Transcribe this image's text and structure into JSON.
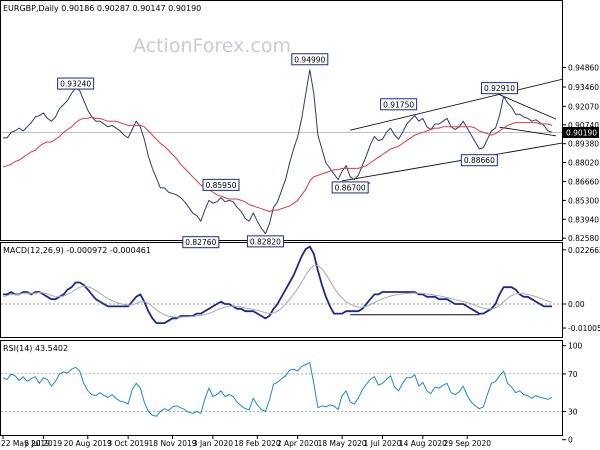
{
  "chart_data": [
    {
      "type": "line",
      "panel": "price",
      "title": "EURGBP,Daily  0.90186 0.90287 0.90147 0.90190",
      "watermark": "ActionForex.com",
      "ylim": [
        0.8245,
        0.9965
      ],
      "y_ticks": [
        "0.94860",
        "0.93460",
        "0.92070",
        "0.90740",
        "0.89380",
        "0.88020",
        "0.86660",
        "0.85300",
        "0.83940",
        "0.82580"
      ],
      "y_tick_values": [
        0.9486,
        0.9346,
        0.9207,
        0.9074,
        0.8938,
        0.8802,
        0.8666,
        0.853,
        0.8394,
        0.8258
      ],
      "last_price_label": "0.90190",
      "last_price": 0.9019,
      "series": [
        {
          "name": "",
          "color": "#2e3b6e",
          "values": [
            0.898,
            0.898,
            0.902,
            0.903,
            0.905,
            0.903,
            0.906,
            0.909,
            0.913,
            0.914,
            0.916,
            0.912,
            0.91,
            0.913,
            0.919,
            0.922,
            0.925,
            0.93,
            0.934,
            0.932,
            0.925,
            0.918,
            0.913,
            0.91,
            0.91,
            0.908,
            0.906,
            0.907,
            0.905,
            0.903,
            0.9,
            0.898,
            0.904,
            0.91,
            0.906,
            0.897,
            0.885,
            0.876,
            0.869,
            0.862,
            0.862,
            0.859,
            0.858,
            0.857,
            0.855,
            0.852,
            0.848,
            0.844,
            0.842,
            0.838,
            0.846,
            0.853,
            0.851,
            0.852,
            0.855,
            0.852,
            0.853,
            0.852,
            0.848,
            0.845,
            0.84,
            0.838,
            0.844,
            0.838,
            0.833,
            0.829,
            0.836,
            0.848,
            0.852,
            0.86,
            0.868,
            0.88,
            0.89,
            0.899,
            0.912,
            0.93,
            0.947,
            0.93,
            0.9,
            0.89,
            0.88,
            0.876,
            0.872,
            0.868,
            0.874,
            0.878,
            0.87,
            0.868,
            0.871,
            0.878,
            0.885,
            0.893,
            0.899,
            0.896,
            0.897,
            0.902,
            0.905,
            0.9,
            0.897,
            0.902,
            0.908,
            0.911,
            0.914,
            0.91,
            0.912,
            0.906,
            0.904,
            0.908,
            0.908,
            0.91,
            0.912,
            0.906,
            0.904,
            0.906,
            0.91,
            0.905,
            0.9,
            0.895,
            0.89,
            0.891,
            0.897,
            0.903,
            0.905,
            0.914,
            0.928,
            0.923,
            0.92,
            0.915,
            0.915,
            0.913,
            0.912,
            0.91,
            0.911,
            0.909,
            0.907,
            0.903,
            0.902
          ]
        },
        {
          "name": "",
          "color": "#e03a3a",
          "values": [
            0.877,
            0.878,
            0.879,
            0.881,
            0.882,
            0.884,
            0.886,
            0.888,
            0.889,
            0.892,
            0.894,
            0.895,
            0.895,
            0.897,
            0.899,
            0.902,
            0.904,
            0.906,
            0.909,
            0.911,
            0.912,
            0.912,
            0.913,
            0.912,
            0.912,
            0.911,
            0.91,
            0.91,
            0.91,
            0.909,
            0.908,
            0.907,
            0.907,
            0.907,
            0.907,
            0.906,
            0.903,
            0.9,
            0.897,
            0.894,
            0.892,
            0.889,
            0.886,
            0.883,
            0.879,
            0.876,
            0.873,
            0.87,
            0.867,
            0.864,
            0.863,
            0.861,
            0.859,
            0.857,
            0.856,
            0.855,
            0.854,
            0.854,
            0.854,
            0.853,
            0.852,
            0.85,
            0.849,
            0.848,
            0.847,
            0.846,
            0.845,
            0.846,
            0.846,
            0.847,
            0.848,
            0.849,
            0.851,
            0.853,
            0.857,
            0.861,
            0.867,
            0.87,
            0.871,
            0.872,
            0.873,
            0.874,
            0.875,
            0.875,
            0.876,
            0.876,
            0.876,
            0.876,
            0.876,
            0.877,
            0.878,
            0.88,
            0.882,
            0.884,
            0.886,
            0.888,
            0.89,
            0.891,
            0.892,
            0.894,
            0.896,
            0.898,
            0.9,
            0.901,
            0.902,
            0.903,
            0.904,
            0.905,
            0.905,
            0.906,
            0.906,
            0.906,
            0.906,
            0.906,
            0.906,
            0.906,
            0.906,
            0.905,
            0.903,
            0.902,
            0.901,
            0.9,
            0.901,
            0.903,
            0.905,
            0.907,
            0.908,
            0.909,
            0.909,
            0.909,
            0.909,
            0.909,
            0.909,
            0.908,
            0.908,
            0.908,
            0.907
          ]
        }
      ],
      "annotations": [
        {
          "text": "0.93240",
          "i": 18,
          "y": 0.9324,
          "pos": "above"
        },
        {
          "text": "0.94990",
          "i": 76,
          "y": 0.9499,
          "pos": "above"
        },
        {
          "text": "0.91750",
          "i": 98,
          "y": 0.9175,
          "pos": "above"
        },
        {
          "text": "0.92910",
          "i": 123,
          "y": 0.9291,
          "pos": "above"
        },
        {
          "text": "0.85950",
          "i": 54,
          "y": 0.8595,
          "pos": "above"
        },
        {
          "text": "0.86700",
          "i": 86,
          "y": 0.867,
          "pos": "below"
        },
        {
          "text": "0.88660",
          "i": 118,
          "y": 0.8866,
          "pos": "below"
        },
        {
          "text": "0.82760",
          "i": 49,
          "y": 0.8276,
          "pos": "below"
        },
        {
          "text": "0.82820",
          "i": 65,
          "y": 0.8282,
          "pos": "below"
        }
      ],
      "trendlines": [
        {
          "i0": 86,
          "y0": 0.9035,
          "i1": 139,
          "y1": 0.9405
        },
        {
          "i0": 84,
          "y0": 0.867,
          "i1": 139,
          "y1": 0.8945
        },
        {
          "i0": 123,
          "y0": 0.9291,
          "i1": 137,
          "y1": 0.9115
        },
        {
          "i0": 123,
          "y0": 0.9057,
          "i1": 137,
          "y1": 0.8995
        },
        {
          "i0": 87,
          "y0": 0.8655,
          "i1": 91,
          "y1": 0.8655
        }
      ]
    },
    {
      "type": "line",
      "panel": "macd",
      "title": "MACD(12,26,9) -0.000972 -0.000461",
      "ylim": [
        -0.0138,
        0.0255
      ],
      "y_ticks": [
        "0.022662",
        "0.00",
        "-0.010052"
      ],
      "y_tick_values": [
        0.022662,
        0.0,
        -0.010052
      ],
      "series": [
        {
          "name": "",
          "color": "#1a2a8c",
          "values": [
            0.004,
            0.004,
            0.005,
            0.004,
            0.004,
            0.005,
            0.005,
            0.004,
            0.005,
            0.005,
            0.004,
            0.003,
            0.002,
            0.002,
            0.003,
            0.004,
            0.006,
            0.007,
            0.009,
            0.009,
            0.008,
            0.006,
            0.004,
            0.002,
            0.001,
            0.0,
            -0.001,
            -0.001,
            -0.001,
            -0.001,
            -0.001,
            -0.001,
            0.001,
            0.003,
            0.004,
            0.001,
            -0.003,
            -0.006,
            -0.008,
            -0.008,
            -0.008,
            -0.007,
            -0.006,
            -0.006,
            -0.005,
            -0.005,
            -0.005,
            -0.005,
            -0.004,
            -0.004,
            -0.003,
            -0.002,
            -0.001,
            0.0,
            0.001,
            0.0,
            0.0,
            -0.001,
            -0.002,
            -0.002,
            -0.003,
            -0.003,
            -0.003,
            -0.004,
            -0.005,
            -0.006,
            -0.005,
            -0.002,
            0.0,
            0.003,
            0.006,
            0.009,
            0.012,
            0.016,
            0.02,
            0.023,
            0.024,
            0.021,
            0.014,
            0.008,
            0.003,
            -0.001,
            -0.004,
            -0.004,
            -0.004,
            -0.003,
            -0.003,
            -0.003,
            -0.003,
            -0.002,
            0.0,
            0.002,
            0.004,
            0.004,
            0.005,
            0.005,
            0.005,
            0.005,
            0.005,
            0.005,
            0.005,
            0.005,
            0.005,
            0.004,
            0.004,
            0.003,
            0.003,
            0.003,
            0.002,
            0.002,
            0.002,
            0.001,
            0.0,
            0.0,
            0.0,
            -0.001,
            -0.002,
            -0.003,
            -0.004,
            -0.004,
            -0.003,
            -0.002,
            0.0,
            0.004,
            0.007,
            0.007,
            0.007,
            0.006,
            0.004,
            0.003,
            0.003,
            0.002,
            0.001,
            0.0,
            -0.001,
            -0.001,
            -0.001
          ]
        },
        {
          "name": "",
          "color": "#aaaaaa",
          "values": [
            0.003,
            0.0035,
            0.004,
            0.004,
            0.004,
            0.0045,
            0.0045,
            0.0045,
            0.0045,
            0.0048,
            0.0046,
            0.0042,
            0.0036,
            0.003,
            0.003,
            0.0033,
            0.004,
            0.005,
            0.006,
            0.007,
            0.0075,
            0.0073,
            0.0066,
            0.0056,
            0.0045,
            0.0033,
            0.0023,
            0.0014,
            0.0007,
            0.0002,
            -0.0002,
            -0.0005,
            -0.0004,
            0.0002,
            0.0009,
            0.001,
            0.0002,
            -0.001,
            -0.0024,
            -0.0036,
            -0.0045,
            -0.0051,
            -0.0054,
            -0.0055,
            -0.0055,
            -0.0054,
            -0.0053,
            -0.0052,
            -0.005,
            -0.0048,
            -0.0044,
            -0.0039,
            -0.0033,
            -0.0026,
            -0.0018,
            -0.0014,
            -0.001,
            -0.0009,
            -0.001,
            -0.0012,
            -0.0016,
            -0.002,
            -0.0022,
            -0.0026,
            -0.0031,
            -0.0037,
            -0.004,
            -0.0038,
            -0.003,
            -0.0018,
            0.0,
            0.002,
            0.004,
            0.0065,
            0.0092,
            0.0121,
            0.0145,
            0.016,
            0.016,
            0.0147,
            0.0125,
            0.0097,
            0.0068,
            0.0044,
            0.0025,
            0.001,
            -0.0001,
            -0.0008,
            -0.0013,
            -0.0014,
            -0.001,
            -0.0003,
            0.0006,
            0.0014,
            0.0022,
            0.0028,
            0.0033,
            0.0037,
            0.004,
            0.0042,
            0.0044,
            0.0045,
            0.0046,
            0.0045,
            0.0044,
            0.0042,
            0.004,
            0.0037,
            0.0034,
            0.003,
            0.0027,
            0.0023,
            0.0018,
            0.0014,
            0.001,
            0.0006,
            0.0001,
            -0.0005,
            -0.0012,
            -0.0018,
            -0.0021,
            -0.0021,
            -0.0016,
            -0.0005,
            0.0009,
            0.0024,
            0.0035,
            0.0042,
            0.0044,
            0.0043,
            0.004,
            0.0036,
            0.0031,
            0.0025,
            0.0018,
            0.0012,
            0.0007
          ]
        }
      ],
      "trendlines": [
        {
          "i0": 86,
          "y0": -0.0045,
          "i1": 118,
          "y1": -0.0045
        }
      ]
    },
    {
      "type": "line",
      "panel": "rsi",
      "title": "RSI(14) 43.5402",
      "ylim": [
        5,
        105
      ],
      "y_ticks": [
        "100",
        "70",
        "30",
        "0"
      ],
      "y_tick_values": [
        100,
        70,
        30,
        0
      ],
      "series": [
        {
          "name": "",
          "color": "#1e88d0",
          "values": [
            66,
            64,
            70,
            68,
            63,
            67,
            62,
            65,
            67,
            60,
            66,
            64,
            57,
            62,
            70,
            72,
            71,
            75,
            77,
            73,
            60,
            52,
            48,
            47,
            50,
            47,
            45,
            48,
            44,
            41,
            40,
            38,
            53,
            60,
            55,
            40,
            30,
            26,
            25,
            30,
            33,
            31,
            35,
            36,
            34,
            32,
            29,
            28,
            30,
            28,
            43,
            55,
            46,
            48,
            52,
            46,
            48,
            46,
            40,
            36,
            33,
            32,
            44,
            37,
            32,
            30,
            42,
            59,
            61,
            65,
            68,
            74,
            75,
            73,
            78,
            80,
            82,
            60,
            34,
            36,
            35,
            37,
            36,
            32,
            47,
            52,
            40,
            38,
            44,
            53,
            59,
            64,
            67,
            58,
            60,
            64,
            68,
            56,
            52,
            60,
            66,
            66,
            69,
            57,
            61,
            52,
            49,
            56,
            55,
            58,
            60,
            50,
            48,
            51,
            57,
            47,
            40,
            36,
            33,
            35,
            48,
            60,
            62,
            68,
            73,
            60,
            56,
            50,
            52,
            48,
            47,
            44,
            47,
            45,
            44,
            43,
            45
          ]
        }
      ]
    }
  ],
  "x_ticks": [
    {
      "label": "22 May 2019",
      "i": 0
    },
    {
      "label": "5 Jul 2019",
      "i": 10
    },
    {
      "label": "20 Aug 2019",
      "i": 21
    },
    {
      "label": "3 Oct 2019",
      "i": 31
    },
    {
      "label": "18 Nov 2019",
      "i": 42
    },
    {
      "label": "3 Jan 2020",
      "i": 52
    },
    {
      "label": "18 Feb 2020",
      "i": 63
    },
    {
      "label": "2 Apr 2020",
      "i": 73
    },
    {
      "label": "18 May 2020",
      "i": 84
    },
    {
      "label": "1 Jul 2020",
      "i": 94
    },
    {
      "label": "14 Aug 2020",
      "i": 104
    },
    {
      "label": "29 Sep 2020",
      "i": 115
    }
  ]
}
